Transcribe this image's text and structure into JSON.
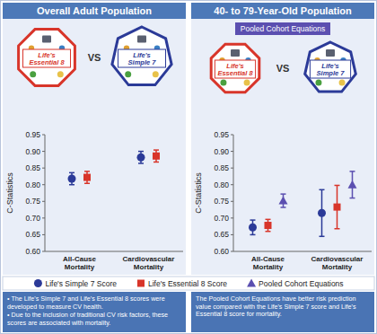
{
  "panels": [
    {
      "title": "Overall Adult Population",
      "icons": [
        "Life's Essential 8",
        "VS",
        "Life's Simple 7"
      ],
      "notes": [
        "• The Life's Simple 7 and Life's Essential 8 scores were developed to measure CV health.",
        "• Due to the inclusion of traditional CV risk factors, these scores are associated with mortality."
      ]
    },
    {
      "title": "40- to 79-Year-Old Population",
      "badge": "Pooled Cohort Equations",
      "icons": [
        "Life's Essential 8",
        "VS",
        "Life's Simple 7"
      ],
      "notes": [
        "The Pooled Cohort Equations have better risk prediction value compared with the Life's Simple 7 score and Life's Essential 8 score for mortality."
      ]
    }
  ],
  "chart_data": [
    {
      "type": "scatter",
      "y_label": "C-Statistics",
      "categories": [
        "All-Cause Mortality",
        "Cardiovascular Mortality"
      ],
      "ylim": [
        0.6,
        0.95
      ],
      "yticks": [
        {
          "value": 0.6,
          "label": "0.60"
        },
        {
          "value": 0.65,
          "label": "0.65"
        },
        {
          "value": 0.7,
          "label": "0.70"
        },
        {
          "value": 0.75,
          "label": "0.75"
        },
        {
          "value": 0.8,
          "label": "0.80"
        },
        {
          "value": 0.85,
          "label": "0.85"
        },
        {
          "value": 0.9,
          "label": "0.90"
        },
        {
          "value": 0.95,
          "label": "0.95"
        }
      ],
      "grid": false,
      "series": [
        {
          "color": "#2b3a98",
          "marker": "circle",
          "values": [
            0.818,
            0.882
          ],
          "errors": [
            0.018,
            0.018
          ]
        },
        {
          "color": "#d8352a",
          "marker": "square",
          "values": [
            0.822,
            0.886
          ],
          "errors": [
            0.018,
            0.018
          ]
        }
      ]
    },
    {
      "type": "scatter",
      "y_label": "C-Statistics",
      "categories": [
        "All-Cause Mortality",
        "Cardiovascular Mortality"
      ],
      "ylim": [
        0.6,
        0.95
      ],
      "yticks": [
        {
          "value": 0.6,
          "label": "0.60"
        },
        {
          "value": 0.65,
          "label": "0.65"
        },
        {
          "value": 0.7,
          "label": "0.70"
        },
        {
          "value": 0.75,
          "label": "0.75"
        },
        {
          "value": 0.8,
          "label": "0.80"
        },
        {
          "value": 0.85,
          "label": "0.85"
        },
        {
          "value": 0.9,
          "label": "0.90"
        },
        {
          "value": 0.95,
          "label": "0.95"
        }
      ],
      "grid": false,
      "series": [
        {
          "name": "Life's Simple 7 Score",
          "color": "#2b3a98",
          "marker": "circle",
          "values": [
            0.672,
            0.715
          ],
          "errors": [
            0.022,
            0.07
          ]
        },
        {
          "name": "Life's Essential 8 Score",
          "color": "#d8352a",
          "marker": "square",
          "values": [
            0.678,
            0.733
          ],
          "errors": [
            0.018,
            0.065
          ]
        },
        {
          "name": "Pooled Cohort Equations",
          "color": "#5b4fb0",
          "marker": "triangle",
          "values": [
            0.752,
            0.8
          ],
          "errors": [
            0.02,
            0.04
          ]
        }
      ]
    }
  ]
}
